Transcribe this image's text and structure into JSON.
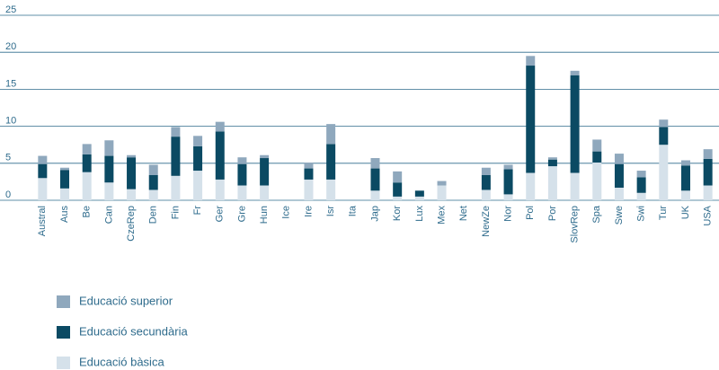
{
  "chart_data": {
    "type": "bar",
    "stacked": true,
    "categories": [
      "Austral",
      "Aus",
      "Be",
      "Can",
      "CzeRep",
      "Den",
      "Fin",
      "Fr",
      "Ger",
      "Gre",
      "Hun",
      "Ice",
      "Ire",
      "Isr",
      "Ita",
      "Jap",
      "Kor",
      "Lux",
      "Mex",
      "Net",
      "NewZe",
      "Nor",
      "Pol",
      "Por",
      "SlovRep",
      "Spa",
      "Swe",
      "Swi",
      "Tur",
      "UK",
      "USA"
    ],
    "series": [
      {
        "name": "Educació bàsica",
        "color": "#d5e1ea",
        "values": [
          3.0,
          1.6,
          3.8,
          2.4,
          1.5,
          1.4,
          3.3,
          4.0,
          2.8,
          2.0,
          2.0,
          0,
          2.8,
          2.8,
          0,
          1.3,
          0.5,
          0.5,
          2.0,
          0,
          1.4,
          0.8,
          3.7,
          4.6,
          3.7,
          5.1,
          1.7,
          1.0,
          7.5,
          1.3,
          2.0
        ]
      },
      {
        "name": "Educació secundària",
        "color": "#0b4a63",
        "values": [
          1.9,
          2.5,
          2.4,
          3.6,
          4.3,
          2.0,
          5.3,
          3.3,
          6.5,
          2.9,
          3.7,
          0,
          1.5,
          4.8,
          0,
          3.0,
          1.9,
          0.8,
          0,
          0,
          2.0,
          3.4,
          14.5,
          0.9,
          13.2,
          1.5,
          3.2,
          2.1,
          2.4,
          3.4,
          3.6
        ]
      },
      {
        "name": "Educació superior",
        "color": "#8fa8bd",
        "values": [
          1.1,
          0.3,
          1.4,
          2.1,
          0.3,
          1.4,
          1.3,
          1.4,
          1.3,
          0.9,
          0.4,
          0,
          0.8,
          2.7,
          0,
          1.4,
          1.5,
          0,
          0.6,
          0,
          1.0,
          0.6,
          1.3,
          0.3,
          0.6,
          1.6,
          1.4,
          0.9,
          1.0,
          0.7,
          1.3
        ]
      }
    ],
    "ylim": [
      0,
      25
    ],
    "yticks": [
      0,
      5,
      10,
      15,
      20,
      25
    ],
    "grid": true
  }
}
